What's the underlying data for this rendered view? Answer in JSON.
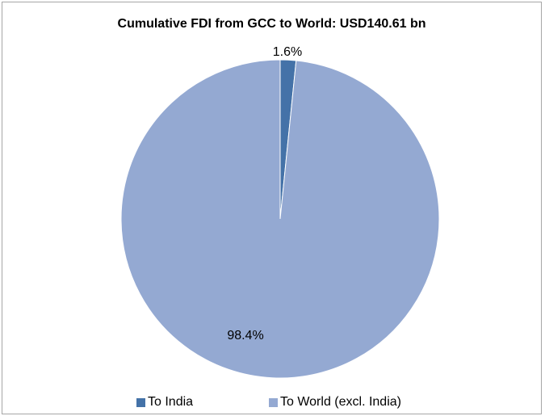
{
  "chart_data": {
    "type": "pie",
    "title": "Cumulative FDI from GCC to World: USD140.61 bn",
    "slices": [
      {
        "label": "To India",
        "value": 1.6,
        "data_label": "1.6%",
        "color": "#4472a8"
      },
      {
        "label": "To World (excl. India)",
        "value": 98.4,
        "data_label": "98.4%",
        "color": "#94a9d2"
      }
    ],
    "legend_position": "bottom"
  }
}
